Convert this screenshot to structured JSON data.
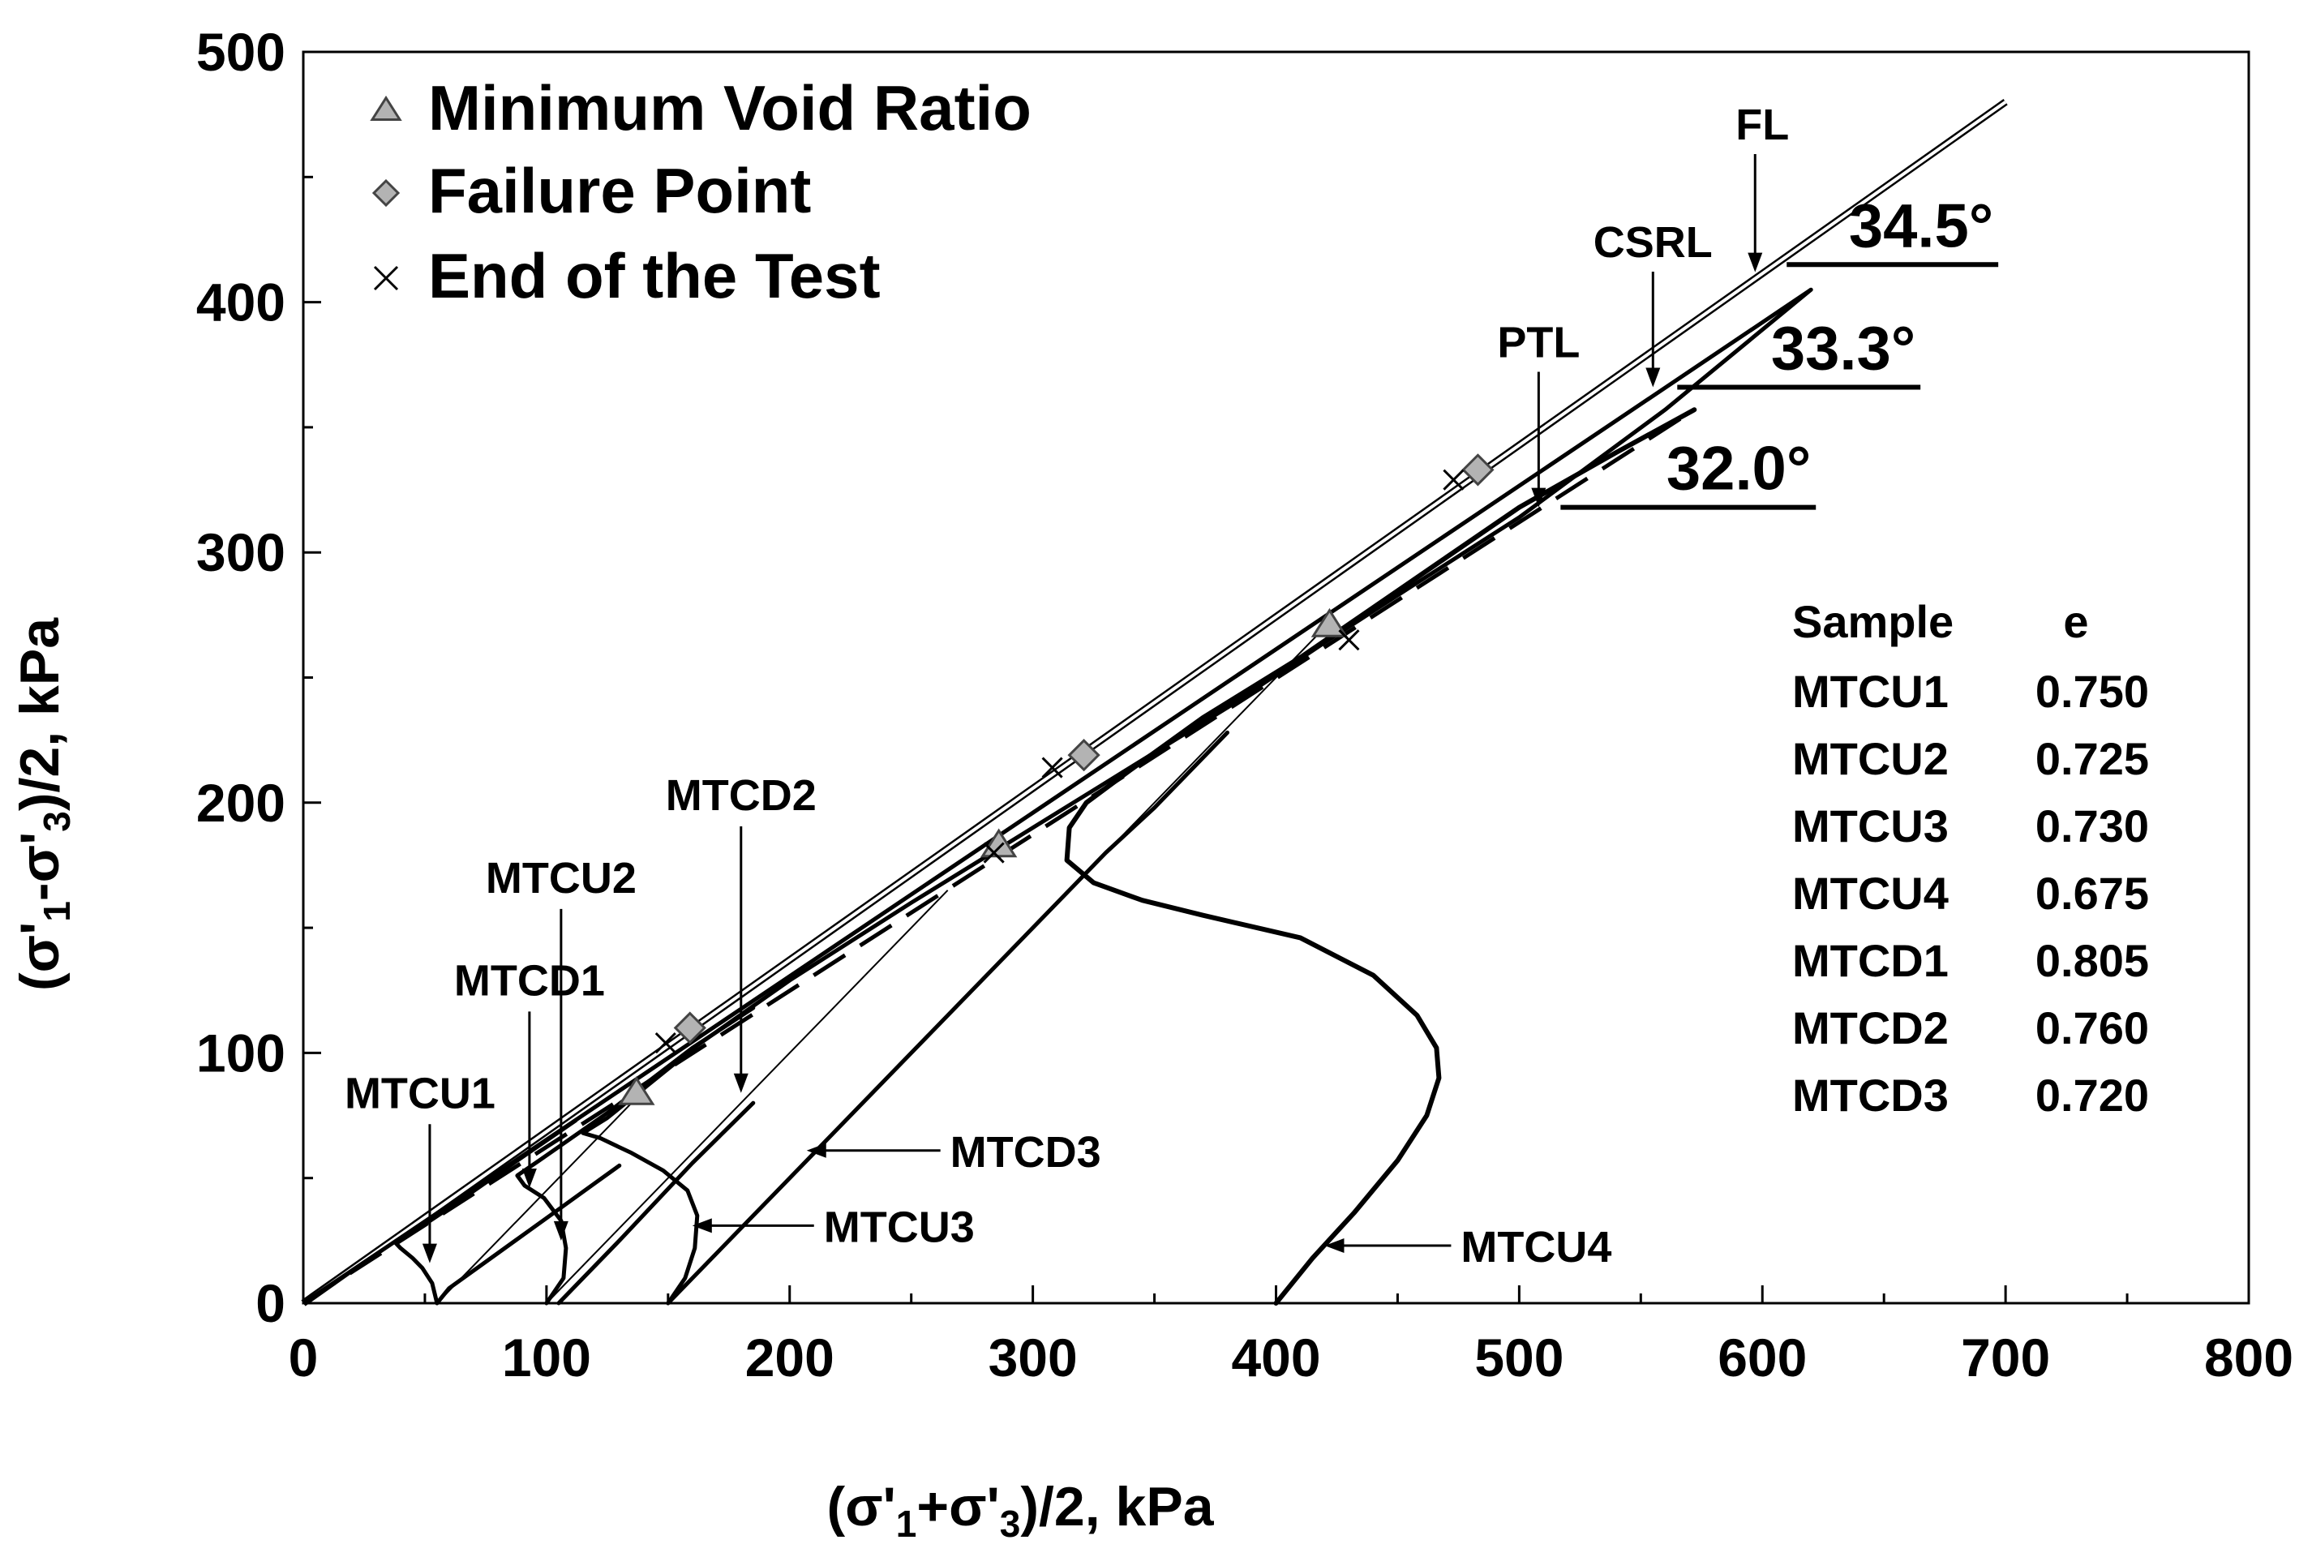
{
  "chart_data": {
    "type": "line",
    "xlabel_parts": [
      "(σ'",
      "1",
      "+σ'",
      "3",
      ")/2, kPa"
    ],
    "ylabel_parts": [
      "(σ'",
      "1",
      "-σ'",
      "3",
      ")/2, kPa"
    ],
    "xlim": [
      0,
      800
    ],
    "ylim": [
      0,
      500
    ],
    "x_ticks": [
      "0",
      "100",
      "200",
      "300",
      "400",
      "500",
      "600",
      "700",
      "800"
    ],
    "y_ticks": [
      "0",
      "100",
      "200",
      "300",
      "400",
      "500"
    ],
    "legend": [
      {
        "symbol": "triangle",
        "label": "Minimum Void Ratio"
      },
      {
        "symbol": "diamond",
        "label": "Failure Point"
      },
      {
        "symbol": "cross",
        "label": "End of the Test"
      }
    ],
    "envelopes": [
      {
        "name": "FL",
        "angle_label": "34.5°",
        "style": "double",
        "points": [
          [
            0,
            0
          ],
          [
            700,
            480
          ]
        ]
      },
      {
        "name": "CSRL",
        "angle_label": "33.3°",
        "style": "solid",
        "points": [
          [
            0,
            0
          ],
          [
            620,
            405
          ]
        ]
      },
      {
        "name": "PTL",
        "angle_label": "32.0°",
        "style": "dashed",
        "points": [
          [
            0,
            0
          ],
          [
            572,
            357
          ]
        ]
      }
    ],
    "envelope_arrows": [
      {
        "label": "FL",
        "label_at": [
          600,
          465
        ],
        "head": [
          597,
          412
        ]
      },
      {
        "label": "CSRL",
        "label_at": [
          555,
          418
        ],
        "head": [
          555,
          366
        ]
      },
      {
        "label": "PTL",
        "label_at": [
          508,
          378
        ],
        "head": [
          508,
          318
        ]
      }
    ],
    "angle_rules": [
      {
        "label": "34.5°",
        "from": [
          610,
          415
        ],
        "to": [
          697,
          415
        ]
      },
      {
        "label": "33.3°",
        "from": [
          565,
          366
        ],
        "to": [
          665,
          366
        ]
      },
      {
        "label": "32.0°",
        "from": [
          517,
          318
        ],
        "to": [
          622,
          318
        ]
      }
    ],
    "total_stress_paths": [
      {
        "start": [
          55,
          0
        ],
        "end": [
          150,
          95
        ]
      },
      {
        "start": [
          100,
          0
        ],
        "end": [
          265,
          165
        ]
      },
      {
        "start": [
          150,
          0
        ],
        "end": [
          420,
          270
        ]
      }
    ],
    "series": [
      {
        "name": "MTCU1",
        "points": [
          [
            55,
            0
          ],
          [
            53,
            8
          ],
          [
            49,
            14
          ],
          [
            45,
            18
          ],
          [
            40,
            22
          ],
          [
            38,
            24
          ],
          [
            43,
            27
          ],
          [
            60,
            38
          ],
          [
            88,
            57
          ],
          [
            112,
            73
          ]
        ]
      },
      {
        "name": "MTCU2",
        "points": [
          [
            100,
            0
          ],
          [
            107,
            10
          ],
          [
            108,
            22
          ],
          [
            106,
            33
          ],
          [
            99,
            42
          ],
          [
            91,
            47
          ],
          [
            88,
            51
          ],
          [
            97,
            57
          ],
          [
            125,
            76
          ],
          [
            160,
            102
          ],
          [
            185,
            118
          ]
        ]
      },
      {
        "name": "MTCU3",
        "points": [
          [
            150,
            0
          ],
          [
            157,
            10
          ],
          [
            161,
            22
          ],
          [
            162,
            35
          ],
          [
            158,
            45
          ],
          [
            148,
            53
          ],
          [
            135,
            60
          ],
          [
            122,
            66
          ],
          [
            115,
            68
          ],
          [
            125,
            74
          ],
          [
            162,
            103
          ],
          [
            200,
            129
          ],
          [
            250,
            160
          ],
          [
            290,
            184
          ],
          [
            330,
            208
          ],
          [
            380,
            238
          ],
          [
            420,
            264
          ],
          [
            455,
            286
          ],
          [
            500,
            314
          ],
          [
            560,
            357
          ],
          [
            620,
            405
          ]
        ]
      },
      {
        "name": "MTCD1",
        "points": [
          [
            55,
            0
          ],
          [
            60,
            6
          ],
          [
            80,
            20
          ],
          [
            100,
            34
          ],
          [
            120,
            48
          ],
          [
            130,
            55
          ]
        ]
      },
      {
        "name": "MTCD2",
        "points": [
          [
            105,
            0
          ],
          [
            130,
            25
          ],
          [
            160,
            56
          ],
          [
            185,
            80
          ]
        ]
      },
      {
        "name": "MTCD3",
        "points": [
          [
            150,
            0
          ],
          [
            200,
            50
          ],
          [
            250,
            100
          ],
          [
            300,
            150
          ],
          [
            330,
            180
          ],
          [
            350,
            198
          ],
          [
            380,
            228
          ]
        ]
      },
      {
        "name": "MTCU4",
        "points": [
          [
            400,
            0
          ],
          [
            415,
            18
          ],
          [
            432,
            36
          ],
          [
            450,
            57
          ],
          [
            462,
            75
          ],
          [
            467,
            90
          ],
          [
            466,
            102
          ],
          [
            458,
            115
          ],
          [
            440,
            131
          ],
          [
            410,
            146
          ],
          [
            370,
            155
          ],
          [
            345,
            161
          ],
          [
            325,
            168
          ],
          [
            314,
            177
          ],
          [
            315,
            190
          ],
          [
            322,
            200
          ],
          [
            340,
            213
          ],
          [
            370,
            234
          ],
          [
            410,
            258
          ],
          [
            440,
            278
          ],
          [
            470,
            298
          ],
          [
            500,
            318
          ],
          [
            540,
            340
          ],
          [
            572,
            357
          ]
        ]
      }
    ],
    "min_void_ratio_points": [
      [
        137,
        84
      ],
      [
        286,
        183
      ],
      [
        422,
        271
      ]
    ],
    "failure_points": [
      [
        159,
        110
      ],
      [
        321,
        219
      ],
      [
        483,
        333
      ]
    ],
    "end_of_test_points": [
      [
        149,
        104
      ],
      [
        308,
        214
      ],
      [
        473,
        329
      ],
      [
        284,
        180
      ],
      [
        430,
        265
      ]
    ],
    "curve_labels": [
      {
        "name": "MTCU1",
        "label_at": [
          48,
          78
        ],
        "head": [
          52,
          16
        ]
      },
      {
        "name": "MTCD1",
        "label_at": [
          93,
          123
        ],
        "head": [
          93,
          46
        ]
      },
      {
        "name": "MTCU2",
        "label_at": [
          106,
          164
        ],
        "head": [
          106,
          25
        ]
      },
      {
        "name": "MTCD2",
        "label_at": [
          180,
          197
        ],
        "head": [
          180,
          84
        ]
      },
      {
        "name": "MTCD3",
        "label_at": [
          262,
          61
        ],
        "head": [
          207,
          61
        ]
      },
      {
        "name": "MTCU3",
        "label_at": [
          210,
          31
        ],
        "head": [
          160,
          31
        ]
      },
      {
        "name": "MTCU4",
        "label_at": [
          472,
          23
        ],
        "head": [
          420,
          23
        ]
      }
    ],
    "sample_table": {
      "header": [
        "Sample",
        "e"
      ],
      "rows": [
        [
          "MTCU1",
          "0.750"
        ],
        [
          "MTCU2",
          "0.725"
        ],
        [
          "MTCU3",
          "0.730"
        ],
        [
          "MTCU4",
          "0.675"
        ],
        [
          "MTCD1",
          "0.805"
        ],
        [
          "MTCD2",
          "0.760"
        ],
        [
          "MTCD3",
          "0.720"
        ]
      ]
    }
  }
}
